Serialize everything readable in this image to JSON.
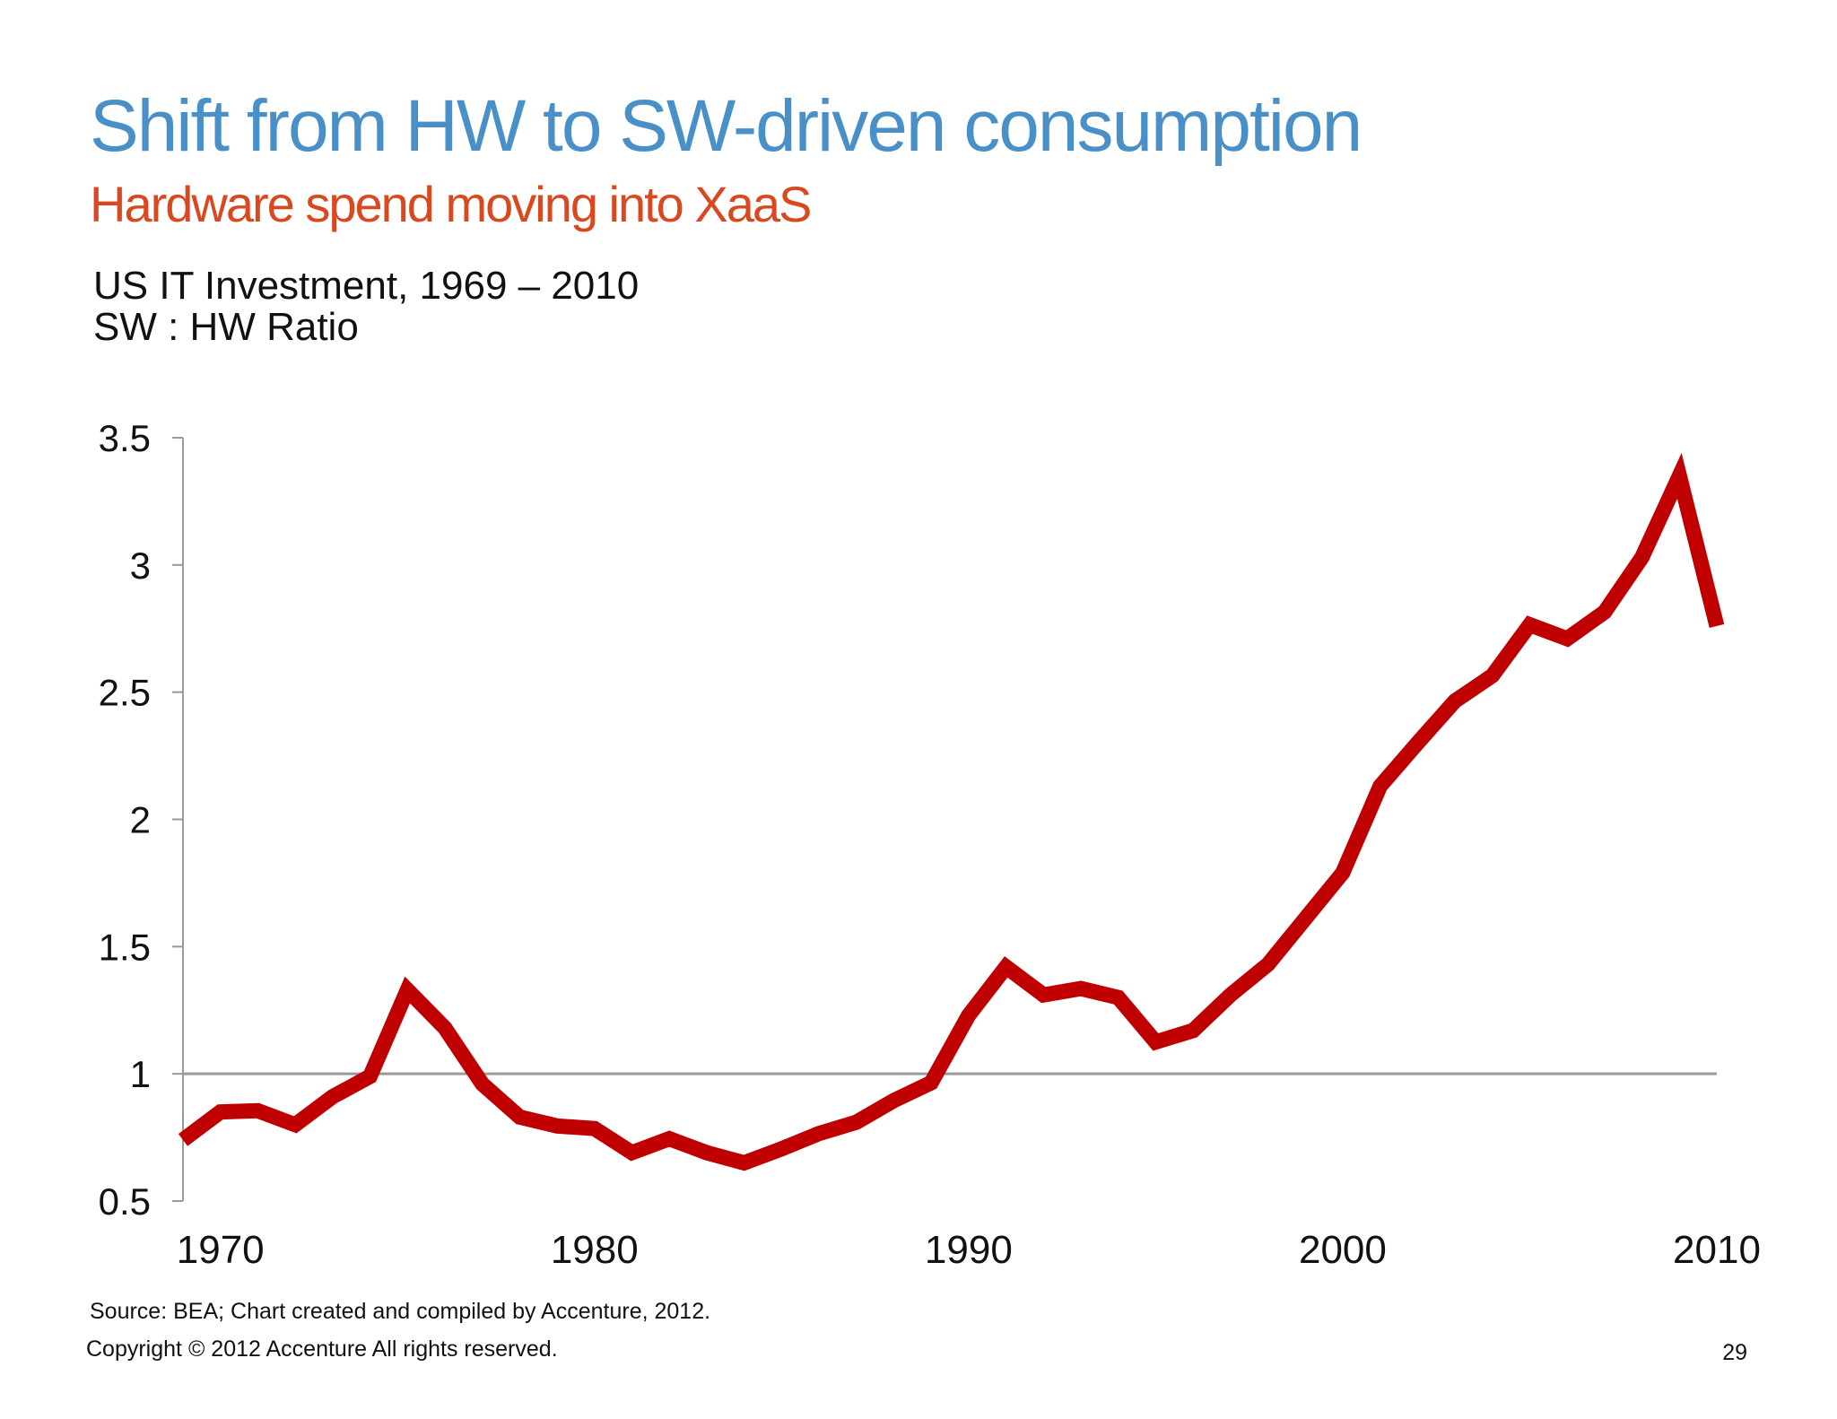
{
  "slide": {
    "title": "Shift from HW to SW-driven consumption",
    "subtitle": "Hardware spend moving into XaaS",
    "chart_title_line1": "US IT Investment, 1969 – 2010",
    "chart_title_line2": "SW : HW Ratio",
    "source": "Source: BEA; Chart created and compiled by Accenture, 2012.",
    "copyright": "Copyright © 2012 Accenture  All rights reserved.",
    "page_number": "29"
  },
  "colors": {
    "title": "#4a90c8",
    "subtitle": "#d9481e",
    "series_line": "#c00000",
    "axis": "#9a9a9a",
    "reference_line": "#9a9a9a"
  },
  "chart_data": {
    "type": "line",
    "title": "US IT Investment, 1969 – 2010",
    "subtitle": "SW : HW Ratio",
    "xlabel": "",
    "ylabel": "",
    "xlim": [
      1969,
      2010
    ],
    "ylim": [
      0.5,
      3.5
    ],
    "x_ticks": [
      1970,
      1980,
      1990,
      2000,
      2010
    ],
    "y_ticks": [
      0.5,
      1,
      1.5,
      2,
      2.5,
      3,
      3.5
    ],
    "y_tick_labels": [
      "0.5",
      "1",
      "1.5",
      "2",
      "2.5",
      "3",
      "3.5"
    ],
    "reference_line_y": 1,
    "grid": false,
    "legend": "none",
    "series": [
      {
        "x": [
          1969,
          1970,
          1971,
          1972,
          1973,
          1974,
          1975,
          1976,
          1977,
          1978,
          1979,
          1980,
          1981,
          1982,
          1983,
          1984,
          1985,
          1986,
          1987,
          1988,
          1989,
          1990,
          1991,
          1992,
          1993,
          1994,
          1995,
          1996,
          1997,
          1998,
          1999,
          2000,
          2001,
          2002,
          2003,
          2004,
          2005,
          2006,
          2007,
          2008,
          2009,
          2010
        ],
        "values": [
          0.74,
          0.85,
          0.855,
          0.8,
          0.91,
          0.99,
          1.33,
          1.18,
          0.96,
          0.83,
          0.795,
          0.785,
          0.69,
          0.745,
          0.69,
          0.65,
          0.705,
          0.765,
          0.81,
          0.895,
          0.965,
          1.23,
          1.42,
          1.31,
          1.335,
          1.3,
          1.125,
          1.17,
          1.31,
          1.43,
          1.61,
          1.79,
          2.13,
          2.3,
          2.465,
          2.565,
          2.765,
          2.71,
          2.815,
          3.03,
          3.35,
          2.76
        ]
      }
    ]
  }
}
